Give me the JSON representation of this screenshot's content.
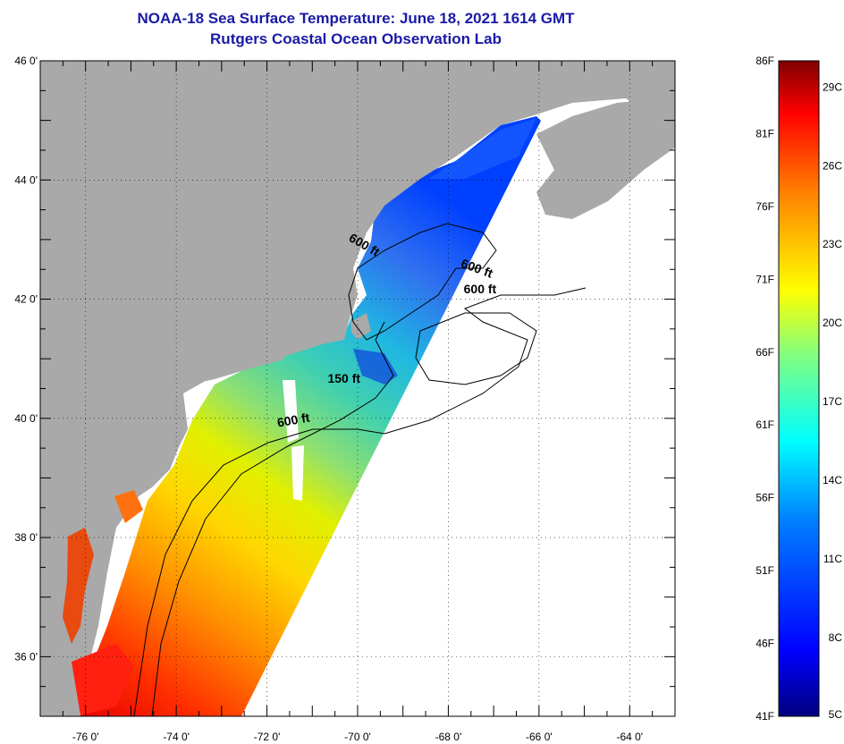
{
  "title": {
    "line1": "NOAA-18 Sea Surface Temperature:  June 18, 2021 1614 GMT",
    "line2": "Rutgers Coastal Ocean Observation Lab"
  },
  "map": {
    "lon_range": [
      -77,
      -63
    ],
    "lat_range": [
      35,
      46
    ],
    "lon_ticks": [
      {
        "value": -76,
        "label": "-76 0'"
      },
      {
        "value": -74,
        "label": "-74 0'"
      },
      {
        "value": -72,
        "label": "-72 0'"
      },
      {
        "value": -70,
        "label": "-70 0'"
      },
      {
        "value": -68,
        "label": "-68 0'"
      },
      {
        "value": -66,
        "label": "-66 0'"
      },
      {
        "value": -64,
        "label": "-64 0'"
      }
    ],
    "lat_ticks": [
      {
        "value": 46,
        "label": "46 0'"
      },
      {
        "value": 44,
        "label": "44 0'"
      },
      {
        "value": 42,
        "label": "42 0'"
      },
      {
        "value": 40,
        "label": "40 0'"
      },
      {
        "value": 38,
        "label": "38 0'"
      },
      {
        "value": 36,
        "label": "36 0'"
      }
    ],
    "grid": "dotted",
    "land_color": "#a9a9a9",
    "contour_labels": [
      {
        "text": "600 ft",
        "lon": -69.9,
        "lat": 42.85,
        "rotate": 30
      },
      {
        "text": "600 ft",
        "lon": -67.4,
        "lat": 42.45,
        "rotate": 20
      },
      {
        "text": "600 ft",
        "lon": -67.3,
        "lat": 42.1,
        "rotate": 0
      },
      {
        "text": "150 ft",
        "lon": -70.3,
        "lat": 40.6,
        "rotate": 0
      },
      {
        "text": "600 ft",
        "lon": -71.4,
        "lat": 39.9,
        "rotate": -10
      }
    ]
  },
  "colorbar": {
    "range_f": [
      41,
      86
    ],
    "f_labels": [
      "86F",
      "81F",
      "76F",
      "71F",
      "66F",
      "61F",
      "56F",
      "51F",
      "46F",
      "41F"
    ],
    "c_labels": [
      "29C",
      "26C",
      "23C",
      "20C",
      "17C",
      "14C",
      "11C",
      "8C",
      "5C"
    ],
    "c_values": [
      29,
      26,
      23,
      20,
      17,
      14,
      11,
      8,
      5
    ],
    "stops": [
      "#00007f",
      "#0000ff",
      "#0080ff",
      "#00ffff",
      "#80ff80",
      "#ffff00",
      "#ff8000",
      "#ff0000",
      "#7f0000"
    ]
  }
}
